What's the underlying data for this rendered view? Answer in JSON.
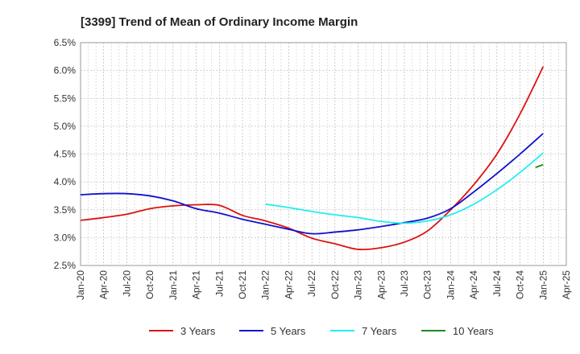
{
  "chart_data": {
    "type": "line",
    "title": "[3399]  Trend of Mean of Ordinary Income Margin",
    "xlabel": "",
    "ylabel": "",
    "ylim": [
      2.5,
      6.5
    ],
    "y_ticks": [
      "6.5%",
      "6.0%",
      "5.5%",
      "5.0%",
      "4.5%",
      "4.0%",
      "3.5%",
      "3.0%",
      "2.5%"
    ],
    "x_ticks": [
      "Jan-20",
      "Apr-20",
      "Jul-20",
      "Oct-20",
      "Jan-21",
      "Apr-21",
      "Jul-21",
      "Oct-21",
      "Jan-22",
      "Apr-22",
      "Jul-22",
      "Oct-22",
      "Jan-23",
      "Apr-23",
      "Jul-23",
      "Oct-23",
      "Jan-24",
      "Apr-24",
      "Jul-24",
      "Oct-24",
      "Jan-25",
      "Apr-25"
    ],
    "grid": true,
    "legend_position": "bottom",
    "series": [
      {
        "name": "3 Years",
        "color": "#dd1111",
        "points": [
          [
            "Jan-20",
            3.31
          ],
          [
            "Apr-20",
            3.36
          ],
          [
            "Jul-20",
            3.42
          ],
          [
            "Oct-20",
            3.52
          ],
          [
            "Jan-21",
            3.57
          ],
          [
            "Apr-21",
            3.59
          ],
          [
            "Jul-21",
            3.58
          ],
          [
            "Oct-21",
            3.4
          ],
          [
            "Jan-22",
            3.3
          ],
          [
            "Apr-22",
            3.17
          ],
          [
            "Jul-22",
            2.99
          ],
          [
            "Oct-22",
            2.89
          ],
          [
            "Jan-23",
            2.79
          ],
          [
            "Apr-23",
            2.82
          ],
          [
            "Jul-23",
            2.92
          ],
          [
            "Oct-23",
            3.12
          ],
          [
            "Jan-24",
            3.5
          ],
          [
            "Apr-24",
            3.95
          ],
          [
            "Jul-24",
            4.5
          ],
          [
            "Oct-24",
            5.22
          ],
          [
            "Jan-25",
            6.07
          ]
        ]
      },
      {
        "name": "5 Years",
        "color": "#1111cc",
        "points": [
          [
            "Jan-20",
            3.77
          ],
          [
            "Apr-20",
            3.79
          ],
          [
            "Jul-20",
            3.79
          ],
          [
            "Oct-20",
            3.75
          ],
          [
            "Jan-21",
            3.66
          ],
          [
            "Apr-21",
            3.52
          ],
          [
            "Jul-21",
            3.44
          ],
          [
            "Oct-21",
            3.33
          ],
          [
            "Jan-22",
            3.24
          ],
          [
            "Apr-22",
            3.15
          ],
          [
            "Jul-22",
            3.07
          ],
          [
            "Oct-22",
            3.1
          ],
          [
            "Jan-23",
            3.14
          ],
          [
            "Apr-23",
            3.2
          ],
          [
            "Jul-23",
            3.27
          ],
          [
            "Oct-23",
            3.35
          ],
          [
            "Jan-24",
            3.52
          ],
          [
            "Apr-24",
            3.82
          ],
          [
            "Jul-24",
            4.15
          ],
          [
            "Oct-24",
            4.5
          ],
          [
            "Jan-25",
            4.87
          ]
        ]
      },
      {
        "name": "7 Years",
        "color": "#22eeee",
        "points": [
          [
            "Jan-22",
            3.6
          ],
          [
            "Apr-22",
            3.54
          ],
          [
            "Jul-22",
            3.47
          ],
          [
            "Oct-22",
            3.41
          ],
          [
            "Jan-23",
            3.36
          ],
          [
            "Apr-23",
            3.29
          ],
          [
            "Jul-23",
            3.26
          ],
          [
            "Oct-23",
            3.3
          ],
          [
            "Jan-24",
            3.41
          ],
          [
            "Apr-24",
            3.6
          ],
          [
            "Jul-24",
            3.86
          ],
          [
            "Oct-24",
            4.17
          ],
          [
            "Jan-25",
            4.52
          ]
        ]
      },
      {
        "name": "10 Years",
        "color": "#228822",
        "points": [
          [
            "Dec-24",
            4.26
          ],
          [
            "Jan-25",
            4.31
          ]
        ]
      }
    ]
  }
}
